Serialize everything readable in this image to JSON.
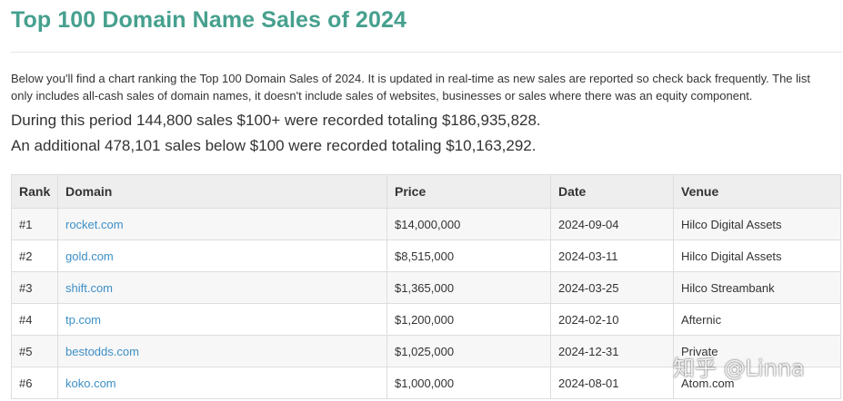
{
  "page": {
    "title": "Top 100 Domain Name Sales of 2024",
    "intro": "Below you'll find a chart ranking the Top 100 Domain Sales of 2024. It is updated in real-time as new sales are reported so check back frequently. The list only includes all-cash sales of domain names, it doesn't include sales of websites, businesses or sales where there was an equity component.",
    "stat_line_1": "During this period 144,800 sales $100+ were recorded totaling $186,935,828.",
    "stat_line_2": "An additional 478,101 sales below $100 were recorded totaling $10,163,292."
  },
  "table": {
    "headers": {
      "rank": "Rank",
      "domain": "Domain",
      "price": "Price",
      "date": "Date",
      "venue": "Venue"
    },
    "rows": [
      {
        "rank": "#1",
        "domain": "rocket.com",
        "price": "$14,000,000",
        "date": "2024-09-04",
        "venue": "Hilco Digital Assets"
      },
      {
        "rank": "#2",
        "domain": "gold.com",
        "price": "$8,515,000",
        "date": "2024-03-11",
        "venue": "Hilco Digital Assets"
      },
      {
        "rank": "#3",
        "domain": "shift.com",
        "price": "$1,365,000",
        "date": "2024-03-25",
        "venue": "Hilco Streambank"
      },
      {
        "rank": "#4",
        "domain": "tp.com",
        "price": "$1,200,000",
        "date": "2024-02-10",
        "venue": "Afternic"
      },
      {
        "rank": "#5",
        "domain": "bestodds.com",
        "price": "$1,025,000",
        "date": "2024-12-31",
        "venue": "Private"
      },
      {
        "rank": "#6",
        "domain": "koko.com",
        "price": "$1,000,000",
        "date": "2024-08-01",
        "venue": "Atom.com"
      }
    ]
  },
  "watermark": {
    "text": "知乎 @Linna"
  }
}
